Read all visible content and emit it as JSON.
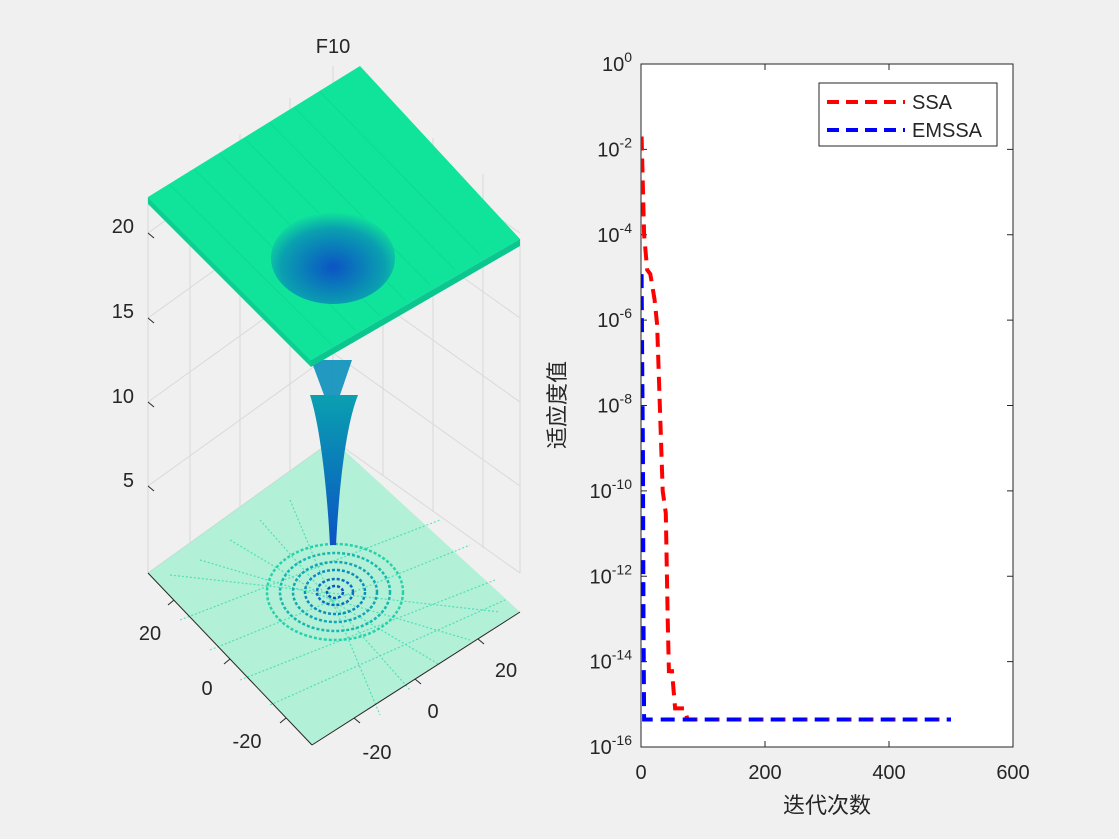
{
  "chart_data": [
    {
      "type": "surface",
      "title": "F10",
      "z_ticks": [
        "5",
        "10",
        "15",
        "20"
      ],
      "x_ticks": [
        "-20",
        "0",
        "20"
      ],
      "y_ticks": [
        "-20",
        "0",
        "20"
      ],
      "colormap": [
        "#0b54c4",
        "#0aa0b0",
        "#0fe49a"
      ],
      "contour_projection": true
    },
    {
      "type": "line",
      "xlabel": "迭代次数",
      "ylabel": "适应度值",
      "xlim": [
        0,
        600
      ],
      "ylim": [
        1e-16,
        1
      ],
      "yscale": "log",
      "x_ticks": [
        "0",
        "200",
        "400",
        "600"
      ],
      "y_ticks": [
        {
          "base": "10",
          "exp": "0"
        },
        {
          "base": "10",
          "exp": "-2"
        },
        {
          "base": "10",
          "exp": "-4"
        },
        {
          "base": "10",
          "exp": "-6"
        },
        {
          "base": "10",
          "exp": "-8"
        },
        {
          "base": "10",
          "exp": "-10"
        },
        {
          "base": "10",
          "exp": "-12"
        },
        {
          "base": "10",
          "exp": "-14"
        },
        {
          "base": "10",
          "exp": "-16"
        }
      ],
      "legend_position": "top-right",
      "series": [
        {
          "name": "SSA",
          "color": "#ff0000",
          "dash": "dashed",
          "points": [
            [
              1,
              0.02
            ],
            [
              5,
              0.0001
            ],
            [
              10,
              1.5e-05
            ],
            [
              15,
              1.2e-05
            ],
            [
              22,
              3e-06
            ],
            [
              26,
              8e-07
            ],
            [
              28,
              1e-07
            ],
            [
              35,
              1e-10
            ],
            [
              40,
              3e-11
            ],
            [
              43,
              1e-13
            ],
            [
              45,
              6e-15
            ],
            [
              50,
              6e-15
            ],
            [
              55,
              8e-16
            ],
            [
              70,
              8e-16
            ],
            [
              75,
              4.4e-16
            ],
            [
              500,
              4.4e-16
            ]
          ]
        },
        {
          "name": "EMSSA",
          "color": "#0000ff",
          "dash": "dashed",
          "points": [
            [
              1,
              1.2e-05
            ],
            [
              2,
              1e-07
            ],
            [
              3,
              1e-09
            ],
            [
              4,
              1e-13
            ],
            [
              5,
              4.4e-16
            ],
            [
              500,
              4.4e-16
            ]
          ]
        }
      ]
    }
  ]
}
